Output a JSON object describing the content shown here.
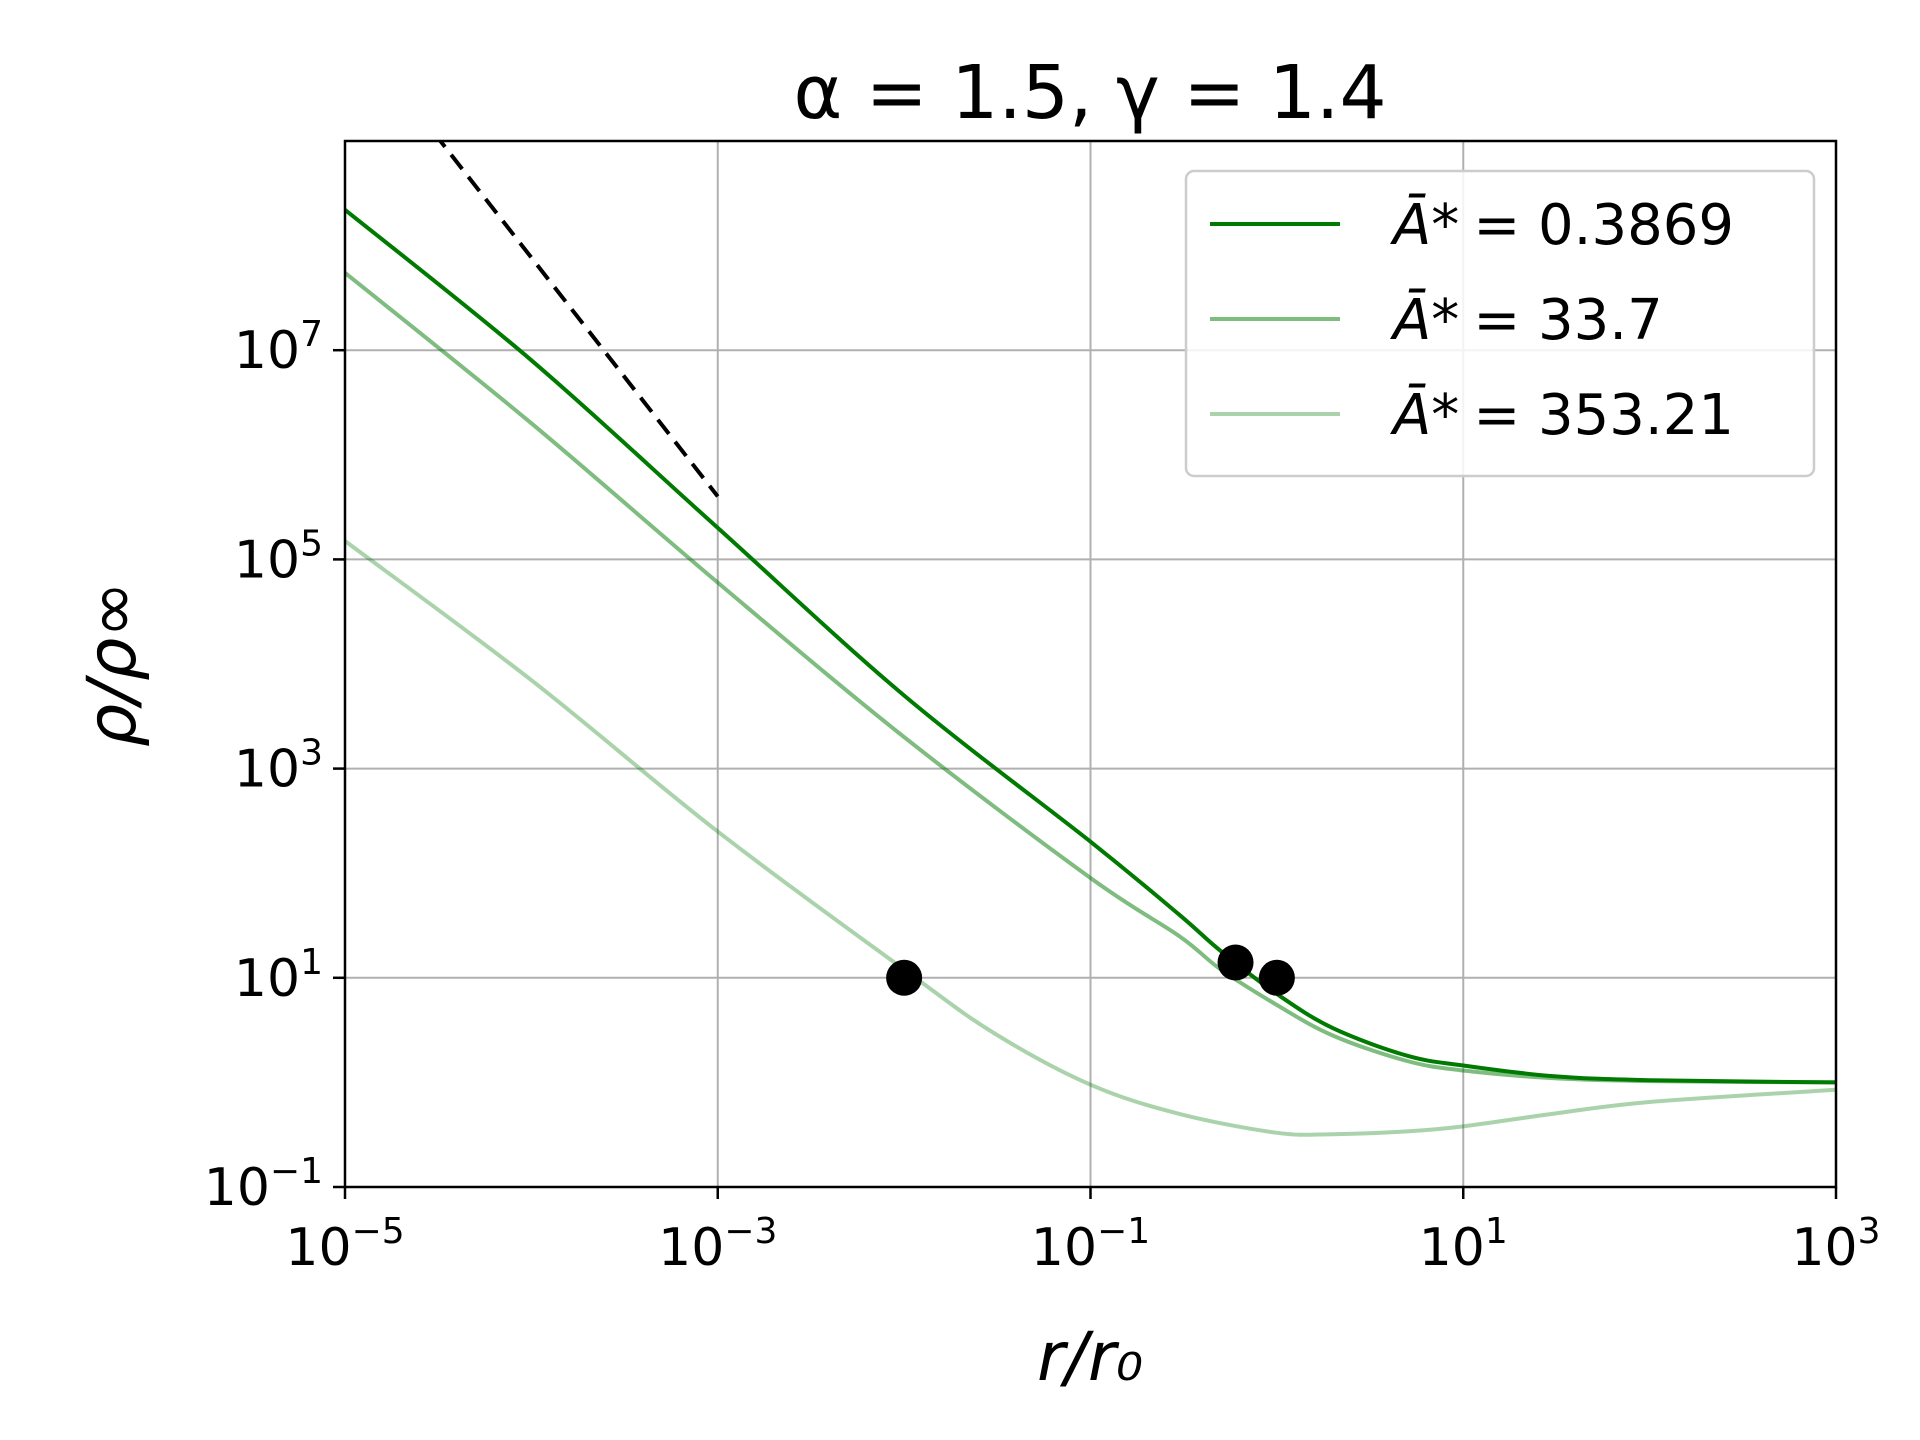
{
  "chart_data": {
    "type": "line",
    "title": "α = 1.5, γ = 1.4",
    "xlabel": "r/r₀",
    "ylabel": "ρ/ρ∞",
    "xscale": "log",
    "yscale": "log",
    "xlim": [
      1e-05,
      1000.0
    ],
    "ylim": [
      0.1,
      1000000000.0
    ],
    "xticks": [
      {
        "value": 1e-05,
        "base": "10",
        "exp": "−5"
      },
      {
        "value": 0.001,
        "base": "10",
        "exp": "−3"
      },
      {
        "value": 0.1,
        "base": "10",
        "exp": "−1"
      },
      {
        "value": 10.0,
        "base": "10",
        "exp": "1"
      },
      {
        "value": 1000.0,
        "base": "10",
        "exp": "3"
      }
    ],
    "yticks": [
      {
        "value": 0.1,
        "base": "10",
        "exp": "−1"
      },
      {
        "value": 10.0,
        "base": "10",
        "exp": "1"
      },
      {
        "value": 1000.0,
        "base": "10",
        "exp": "3"
      },
      {
        "value": 100000.0,
        "base": "10",
        "exp": "5"
      },
      {
        "value": 10000000.0,
        "base": "10",
        "exp": "7"
      }
    ],
    "grid": true,
    "legend_position": "top-right",
    "series": [
      {
        "name": "Ā* = 0.3869",
        "legend_lhs": "Ā*",
        "legend_rhs": "= 0.3869",
        "color": "#007a00",
        "opacity": 1.0,
        "x": [
          1e-05,
          0.0001,
          0.001,
          0.01,
          0.1,
          0.3,
          0.5,
          1,
          2,
          5,
          10,
          30,
          100,
          1000
        ],
        "y": [
          220000000.0,
          8000000.0,
          200000.0,
          5000,
          200,
          40,
          18,
          7,
          3.3,
          1.8,
          1.45,
          1.15,
          1.05,
          1.0
        ]
      },
      {
        "name": "Ā* = 33.7",
        "legend_lhs": "Ā*",
        "legend_rhs": "= 33.7",
        "color": "#007a00",
        "opacity": 0.5,
        "x": [
          1e-05,
          0.0001,
          0.001,
          0.01,
          0.1,
          0.3,
          0.5,
          1,
          2,
          5,
          10,
          30,
          100,
          1000
        ],
        "y": [
          55000000.0,
          2000000.0,
          60000.0,
          2000,
          90,
          25,
          12,
          5.5,
          2.8,
          1.6,
          1.3,
          1.1,
          1.03,
          1.0
        ]
      },
      {
        "name": "Ā* = 353.21",
        "legend_lhs": "Ā*",
        "legend_rhs": "= 353.21",
        "color": "#007a00",
        "opacity": 0.33,
        "x": [
          1e-05,
          0.0001,
          0.001,
          0.01,
          0.03,
          0.1,
          0.3,
          1,
          2,
          5,
          10,
          30,
          100,
          1000
        ],
        "y": [
          150000.0,
          7000,
          250,
          12,
          3,
          0.95,
          0.5,
          0.33,
          0.32,
          0.34,
          0.38,
          0.5,
          0.65,
          0.85
        ]
      }
    ],
    "reference_line": {
      "style": "dashed",
      "color": "#000000",
      "x": [
        3e-05,
        0.001
      ],
      "y": [
        1200000000.0,
        400000.0
      ]
    },
    "markers": [
      {
        "x": 0.01,
        "y": 10,
        "color": "#000000"
      },
      {
        "x": 0.6,
        "y": 14,
        "color": "#000000"
      },
      {
        "x": 1.0,
        "y": 10,
        "color": "#000000"
      }
    ]
  }
}
